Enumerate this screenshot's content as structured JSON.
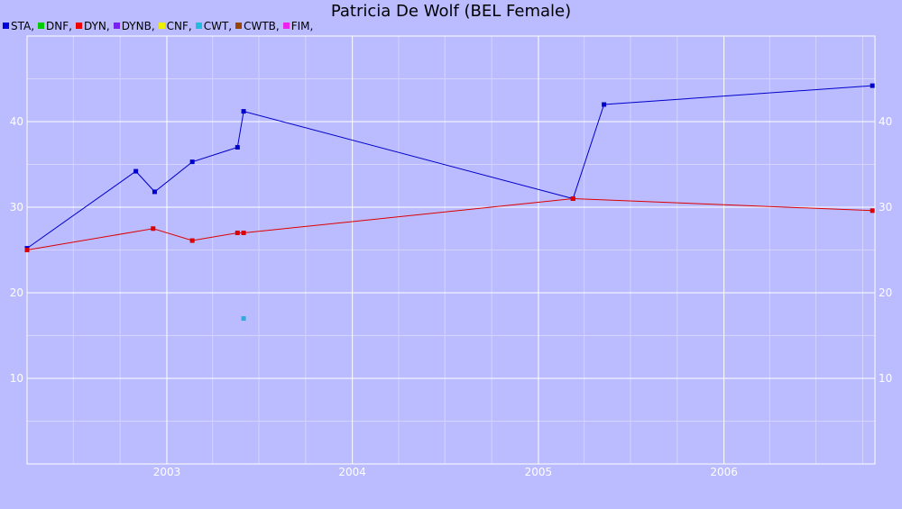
{
  "chart_data": {
    "type": "line",
    "title": "Patricia De Wolf (BEL Female)",
    "xlabel": "",
    "ylabel": "",
    "x_domain": [
      "2002-04-01",
      "2006-10-25"
    ],
    "ylim": [
      0,
      50
    ],
    "x_ticks": [
      {
        "date": "2003-01-01",
        "label": "2003"
      },
      {
        "date": "2004-01-01",
        "label": "2004"
      },
      {
        "date": "2005-01-01",
        "label": "2005"
      },
      {
        "date": "2006-01-01",
        "label": "2006"
      }
    ],
    "y_ticks": [
      10,
      20,
      30,
      40
    ],
    "grid": true,
    "legend_position": "top-left",
    "legend": [
      {
        "label": "STA,",
        "color": "#0000dd"
      },
      {
        "label": "DNF,",
        "color": "#00cc00"
      },
      {
        "label": "DYN,",
        "color": "#ee0000"
      },
      {
        "label": "DYNB,",
        "color": "#7722ee"
      },
      {
        "label": "CNF,",
        "color": "#eeee00"
      },
      {
        "label": "CWT,",
        "color": "#22bbdd"
      },
      {
        "label": "CWTB,",
        "color": "#994400"
      },
      {
        "label": "FIM,",
        "color": "#ee22ee"
      }
    ],
    "series": [
      {
        "name": "STA",
        "color": "#0000cc",
        "connected": true,
        "points": [
          {
            "x": "2002-04-01",
            "y": 25.2
          },
          {
            "x": "2002-11-01",
            "y": 34.2
          },
          {
            "x": "2002-12-08",
            "y": 31.8
          },
          {
            "x": "2003-02-20",
            "y": 35.3
          },
          {
            "x": "2003-05-20",
            "y": 37.0
          },
          {
            "x": "2003-06-01",
            "y": 41.2
          },
          {
            "x": "2005-03-10",
            "y": 31.0
          },
          {
            "x": "2005-05-10",
            "y": 42.0
          },
          {
            "x": "2006-10-20",
            "y": 44.2
          }
        ]
      },
      {
        "name": "DYN",
        "color": "#dd0000",
        "connected": true,
        "points": [
          {
            "x": "2002-04-01",
            "y": 25.0
          },
          {
            "x": "2002-12-05",
            "y": 27.5
          },
          {
            "x": "2003-02-20",
            "y": 26.1
          },
          {
            "x": "2003-05-20",
            "y": 27.0
          },
          {
            "x": "2003-06-01",
            "y": 27.0
          },
          {
            "x": "2005-03-10",
            "y": 31.0
          },
          {
            "x": "2006-10-20",
            "y": 29.6
          }
        ]
      },
      {
        "name": "CWT",
        "color": "#33aadd",
        "connected": false,
        "points": [
          {
            "x": "2003-06-01",
            "y": 17.0
          }
        ]
      }
    ]
  }
}
